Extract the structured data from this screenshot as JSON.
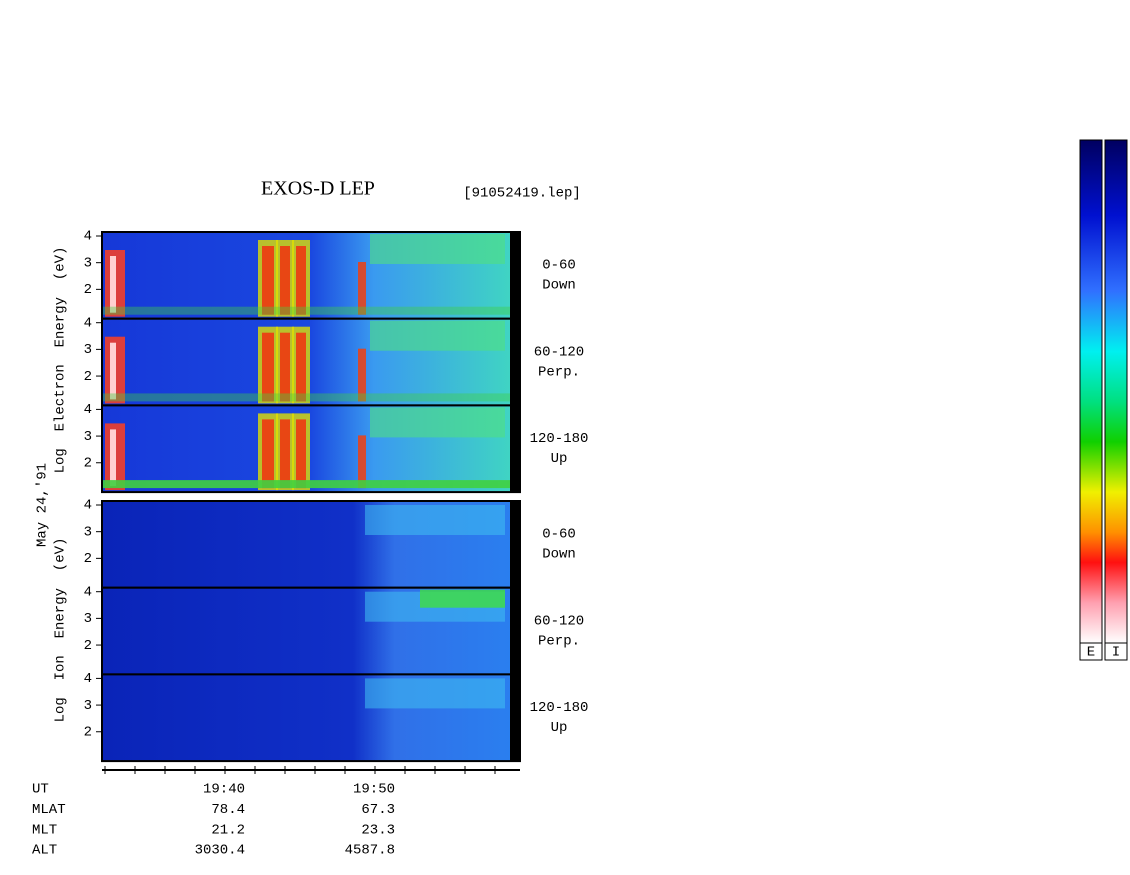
{
  "title": "EXOS-D LEP",
  "file": "[91052419.lep]",
  "date": "May 24,'91",
  "ylim": [
    0.9,
    4.15
  ],
  "yticks": [
    2,
    3,
    4
  ],
  "groups": [
    {
      "label": "Log  Electron  Energy  (eV)",
      "panels": [
        {
          "label": [
            "0-60",
            "Down"
          ]
        },
        {
          "label": [
            "60-120",
            "Perp."
          ]
        },
        {
          "label": [
            "120-180",
            "Up"
          ]
        }
      ]
    },
    {
      "label": "Log  Ion  Energy  (eV)",
      "panels": [
        {
          "label": [
            "0-60",
            "Down"
          ]
        },
        {
          "label": [
            "60-120",
            "Perp."
          ]
        },
        {
          "label": [
            "120-180",
            "Up"
          ]
        }
      ]
    }
  ],
  "orbit": {
    "rows": [
      [
        "UT",
        "19:40",
        "19:50"
      ],
      [
        "MLAT",
        "78.4",
        "67.3"
      ],
      [
        "MLT",
        "21.2",
        "23.3"
      ],
      [
        "ALT",
        "3030.4",
        "4587.8"
      ]
    ]
  },
  "colorbar": {
    "labels": [
      "E",
      "I"
    ]
  }
}
